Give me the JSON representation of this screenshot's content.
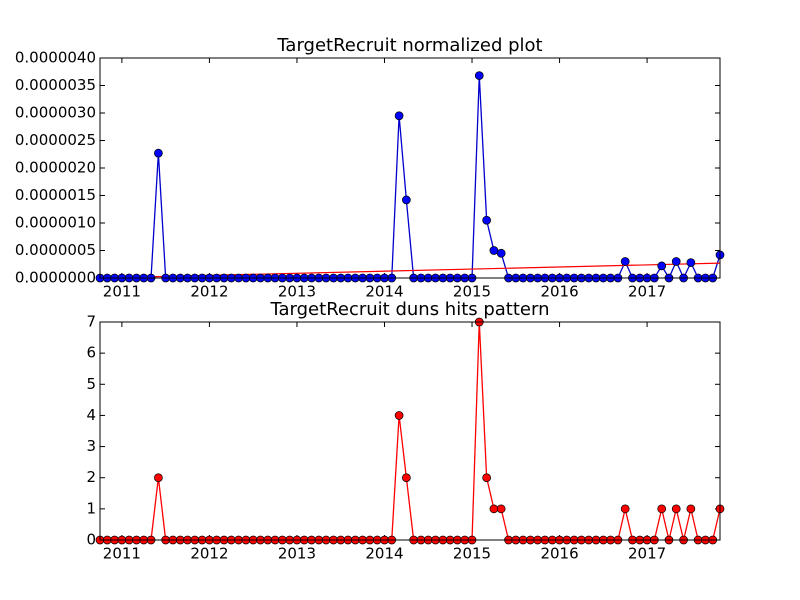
{
  "chart_data": [
    {
      "type": "line",
      "title": "TargetRecruit normalized plot",
      "color": "#0000cc",
      "marker_color": "#0000ff",
      "x": [
        2010.75,
        2010.833,
        2010.917,
        2011.0,
        2011.083,
        2011.167,
        2011.25,
        2011.333,
        2011.417,
        2011.5,
        2011.583,
        2011.667,
        2011.75,
        2011.833,
        2011.917,
        2012.0,
        2012.083,
        2012.167,
        2012.25,
        2012.333,
        2012.417,
        2012.5,
        2012.583,
        2012.667,
        2012.75,
        2012.833,
        2012.917,
        2013.0,
        2013.083,
        2013.167,
        2013.25,
        2013.333,
        2013.417,
        2013.5,
        2013.583,
        2013.667,
        2013.75,
        2013.833,
        2013.917,
        2014.0,
        2014.083,
        2014.167,
        2014.25,
        2014.333,
        2014.417,
        2014.5,
        2014.583,
        2014.667,
        2014.75,
        2014.833,
        2014.917,
        2015.0,
        2015.083,
        2015.167,
        2015.25,
        2015.333,
        2015.417,
        2015.5,
        2015.583,
        2015.667,
        2015.75,
        2015.833,
        2015.917,
        2016.0,
        2016.083,
        2016.167,
        2016.25,
        2016.333,
        2016.417,
        2016.5,
        2016.583,
        2016.667,
        2016.75,
        2016.833,
        2016.917,
        2017.0,
        2017.083,
        2017.167,
        2017.25,
        2017.333,
        2017.417,
        2017.5,
        2017.583,
        2017.667,
        2017.75,
        2017.833
      ],
      "values": [
        0,
        0,
        0,
        0,
        0,
        0,
        0,
        0,
        2.27e-06,
        0,
        0,
        0,
        0,
        0,
        0,
        0,
        0,
        0,
        0,
        0,
        0,
        0,
        0,
        0,
        0,
        0,
        0,
        0,
        0,
        0,
        0,
        0,
        0,
        0,
        0,
        0,
        0,
        0,
        0,
        0,
        0,
        2.95e-06,
        1.42e-06,
        0,
        0,
        0,
        0,
        0,
        0,
        0,
        0,
        0,
        3.68e-06,
        1.05e-06,
        5e-07,
        4.5e-07,
        0,
        0,
        0,
        0,
        0,
        0,
        0,
        0,
        0,
        0,
        0,
        0,
        0,
        0,
        0,
        0,
        3e-07,
        0,
        0,
        0,
        0,
        2.2e-07,
        0,
        3e-07,
        0,
        2.8e-07,
        0,
        0,
        0,
        4.2e-07
      ],
      "trend": {
        "x": [
          2010.75,
          2017.833
        ],
        "values": [
          0,
          2.7e-07
        ],
        "color": "#ff0000"
      },
      "xlim": [
        2010.75,
        2017.833
      ],
      "xticks": [
        2011,
        2012,
        2013,
        2014,
        2015,
        2016,
        2017
      ],
      "ylim": [
        0,
        4e-06
      ],
      "yticks": [
        {
          "value": 0,
          "label": "0.0000000"
        },
        {
          "value": 5e-07,
          "label": "0.0000005"
        },
        {
          "value": 1e-06,
          "label": "0.0000010"
        },
        {
          "value": 1.5e-06,
          "label": "0.0000015"
        },
        {
          "value": 2e-06,
          "label": "0.0000020"
        },
        {
          "value": 2.5e-06,
          "label": "0.0000025"
        },
        {
          "value": 3e-06,
          "label": "0.0000030"
        },
        {
          "value": 3.5e-06,
          "label": "0.0000035"
        },
        {
          "value": 4e-06,
          "label": "0.0000040"
        }
      ]
    },
    {
      "type": "line",
      "title": "TargetRecruit duns hits pattern",
      "color": "#ff0000",
      "marker_color": "#ff0000",
      "x": [
        2010.75,
        2010.833,
        2010.917,
        2011.0,
        2011.083,
        2011.167,
        2011.25,
        2011.333,
        2011.417,
        2011.5,
        2011.583,
        2011.667,
        2011.75,
        2011.833,
        2011.917,
        2012.0,
        2012.083,
        2012.167,
        2012.25,
        2012.333,
        2012.417,
        2012.5,
        2012.583,
        2012.667,
        2012.75,
        2012.833,
        2012.917,
        2013.0,
        2013.083,
        2013.167,
        2013.25,
        2013.333,
        2013.417,
        2013.5,
        2013.583,
        2013.667,
        2013.75,
        2013.833,
        2013.917,
        2014.0,
        2014.083,
        2014.167,
        2014.25,
        2014.333,
        2014.417,
        2014.5,
        2014.583,
        2014.667,
        2014.75,
        2014.833,
        2014.917,
        2015.0,
        2015.083,
        2015.167,
        2015.25,
        2015.333,
        2015.417,
        2015.5,
        2015.583,
        2015.667,
        2015.75,
        2015.833,
        2015.917,
        2016.0,
        2016.083,
        2016.167,
        2016.25,
        2016.333,
        2016.417,
        2016.5,
        2016.583,
        2016.667,
        2016.75,
        2016.833,
        2016.917,
        2017.0,
        2017.083,
        2017.167,
        2017.25,
        2017.333,
        2017.417,
        2017.5,
        2017.583,
        2017.667,
        2017.75,
        2017.833
      ],
      "values": [
        0,
        0,
        0,
        0,
        0,
        0,
        0,
        0,
        2,
        0,
        0,
        0,
        0,
        0,
        0,
        0,
        0,
        0,
        0,
        0,
        0,
        0,
        0,
        0,
        0,
        0,
        0,
        0,
        0,
        0,
        0,
        0,
        0,
        0,
        0,
        0,
        0,
        0,
        0,
        0,
        0,
        4,
        2,
        0,
        0,
        0,
        0,
        0,
        0,
        0,
        0,
        0,
        7,
        2,
        1,
        1,
        0,
        0,
        0,
        0,
        0,
        0,
        0,
        0,
        0,
        0,
        0,
        0,
        0,
        0,
        0,
        0,
        1,
        0,
        0,
        0,
        0,
        1,
        0,
        1,
        0,
        1,
        0,
        0,
        0,
        1
      ],
      "xlim": [
        2010.75,
        2017.833
      ],
      "xticks": [
        2011,
        2012,
        2013,
        2014,
        2015,
        2016,
        2017
      ],
      "ylim": [
        0,
        7
      ],
      "yticks": [
        0,
        1,
        2,
        3,
        4,
        5,
        6,
        7
      ]
    }
  ]
}
